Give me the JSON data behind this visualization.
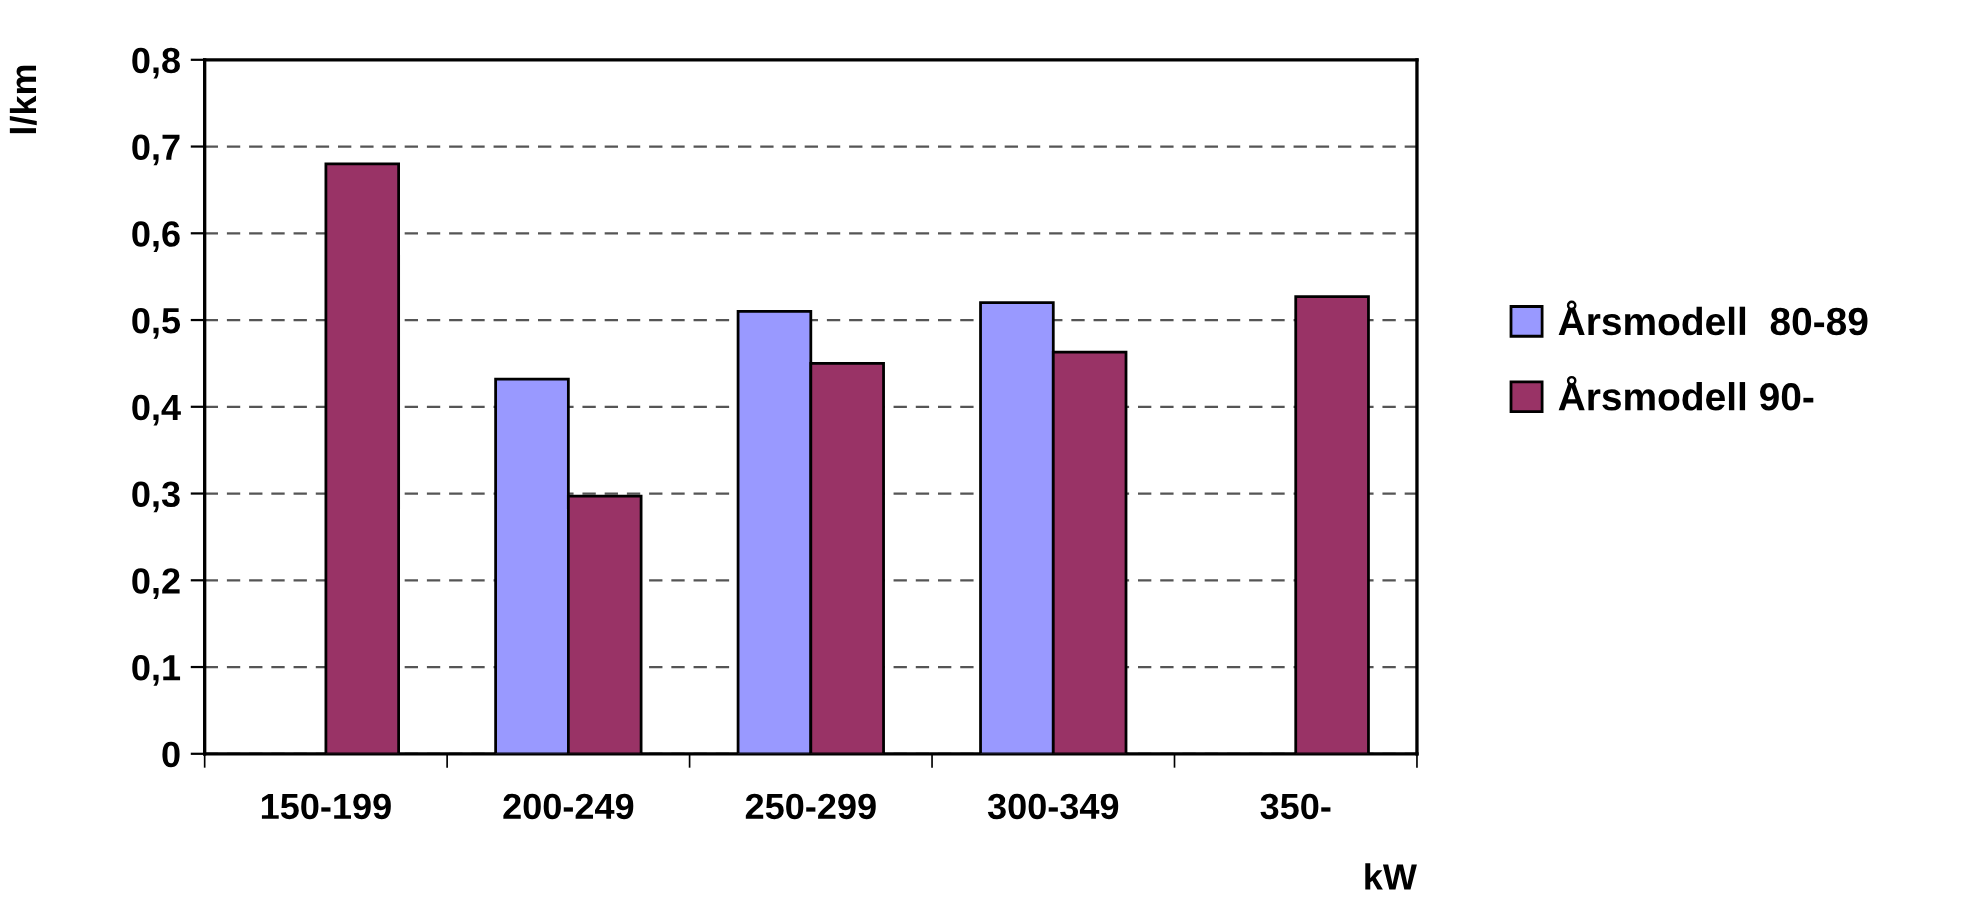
{
  "chart_data": {
    "type": "bar",
    "ylabel": "l/km",
    "xlabel": "kW",
    "categories": [
      "150-199",
      "200-249",
      "250-299",
      "300-349",
      "350-"
    ],
    "series": [
      {
        "name": "Årsmodell  80-89",
        "color": "#9999ff",
        "values": [
          null,
          0.432,
          0.51,
          0.52,
          null
        ]
      },
      {
        "name": "Årsmodell 90-",
        "color": "#993366",
        "values": [
          0.68,
          0.297,
          0.45,
          0.463,
          0.527
        ]
      }
    ],
    "ylim": [
      0,
      0.8
    ],
    "yticks": [
      0,
      {
        "value": 0.1,
        "label": "0,1"
      },
      {
        "value": 0.2,
        "label": "0,2"
      },
      {
        "value": 0.3,
        "label": "0,3"
      },
      {
        "value": 0.4,
        "label": "0,4"
      },
      {
        "value": 0.5,
        "label": "0,5"
      },
      {
        "value": 0.6,
        "label": "0,6"
      },
      {
        "value": 0.7,
        "label": "0,7"
      },
      {
        "value": 0.8,
        "label": "0,8"
      }
    ],
    "grid": "y",
    "legend": "right"
  }
}
